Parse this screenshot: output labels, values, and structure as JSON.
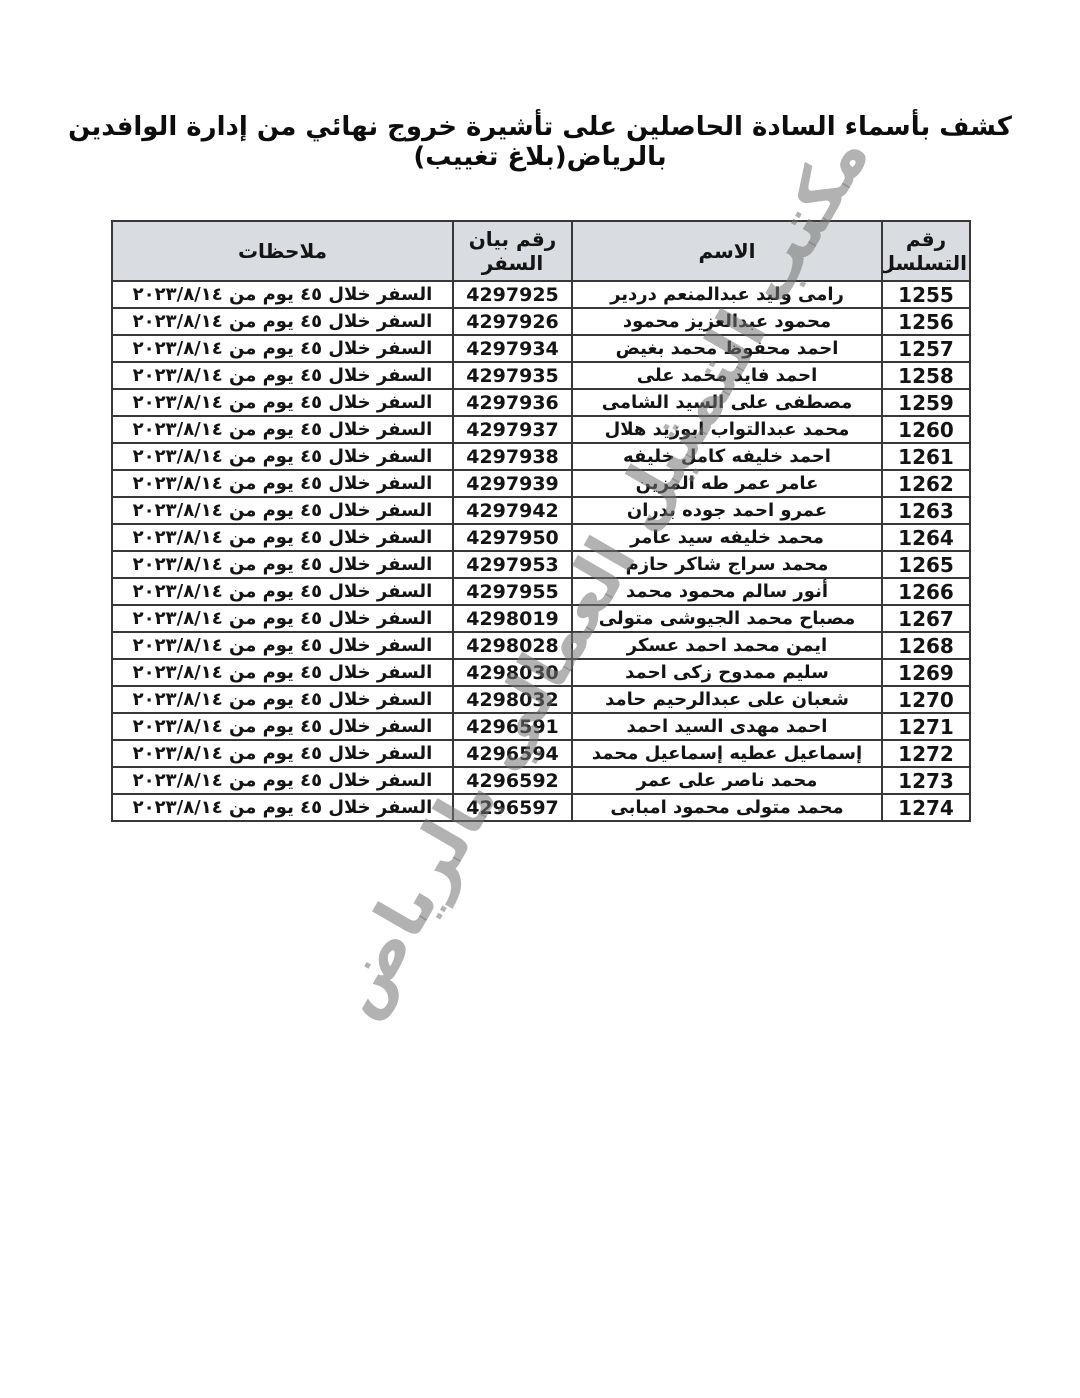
{
  "title": "كشف بأسماء السادة الحاصلين على تأشيرة خروج نهائي من إدارة الوافدين بالرياض(بلاغ تغييب)",
  "watermark_text": "مكتب التمثيل العمالي بالرياض",
  "colors": {
    "header_bg": "#d9dce0",
    "border_color": "#383838",
    "watermark_color": "rgba(115,115,115,0.55)"
  },
  "table": {
    "headers": {
      "serial": "رقم التسلسل",
      "name": "الاسم",
      "travel_doc": "رقم بيان السفر",
      "notes": "ملاحظات"
    },
    "rows": [
      {
        "serial": "1255",
        "name": "رامى وليد عبدالمنعم دردير",
        "travel_doc": "4297925",
        "notes": "السفر خلال ٤٥ يوم من ٢٠٢٣/٨/١٤"
      },
      {
        "serial": "1256",
        "name": "محمود عبدالعزيز محمود",
        "travel_doc": "4297926",
        "notes": "السفر خلال ٤٥ يوم من ٢٠٢٣/٨/١٤"
      },
      {
        "serial": "1257",
        "name": "احمد محفوظ محمد بغيض",
        "travel_doc": "4297934",
        "notes": "السفر خلال ٤٥ يوم من ٢٠٢٣/٨/١٤"
      },
      {
        "serial": "1258",
        "name": "احمد فايد محمد على",
        "travel_doc": "4297935",
        "notes": "السفر خلال ٤٥ يوم من ٢٠٢٣/٨/١٤"
      },
      {
        "serial": "1259",
        "name": "مصطفى على السيد الشامى",
        "travel_doc": "4297936",
        "notes": "السفر خلال ٤٥ يوم من ٢٠٢٣/٨/١٤"
      },
      {
        "serial": "1260",
        "name": "محمد عبدالتواب ابوزيد هلال",
        "travel_doc": "4297937",
        "notes": "السفر خلال ٤٥ يوم من ٢٠٢٣/٨/١٤"
      },
      {
        "serial": "1261",
        "name": "احمد خليفه كامل خليفه",
        "travel_doc": "4297938",
        "notes": "السفر خلال ٤٥ يوم من ٢٠٢٣/٨/١٤"
      },
      {
        "serial": "1262",
        "name": "عامر عمر طه المزين",
        "travel_doc": "4297939",
        "notes": "السفر خلال ٤٥ يوم من ٢٠٢٣/٨/١٤"
      },
      {
        "serial": "1263",
        "name": "عمرو احمد جوده بدران",
        "travel_doc": "4297942",
        "notes": "السفر خلال ٤٥ يوم من ٢٠٢٣/٨/١٤"
      },
      {
        "serial": "1264",
        "name": "محمد خليفه سيد عامر",
        "travel_doc": "4297950",
        "notes": "السفر خلال ٤٥ يوم من ٢٠٢٣/٨/١٤"
      },
      {
        "serial": "1265",
        "name": "محمد سراج شاكر حازم",
        "travel_doc": "4297953",
        "notes": "السفر خلال ٤٥ يوم من ٢٠٢٣/٨/١٤"
      },
      {
        "serial": "1266",
        "name": "أنور سالم محمود محمد",
        "travel_doc": "4297955",
        "notes": "السفر خلال ٤٥ يوم من ٢٠٢٣/٨/١٤"
      },
      {
        "serial": "1267",
        "name": "مصباح محمد الجيوشى متولى",
        "travel_doc": "4298019",
        "notes": "السفر خلال ٤٥ يوم من ٢٠٢٣/٨/١٤"
      },
      {
        "serial": "1268",
        "name": "ايمن محمد احمد عسكر",
        "travel_doc": "4298028",
        "notes": "السفر خلال ٤٥ يوم من ٢٠٢٣/٨/١٤"
      },
      {
        "serial": "1269",
        "name": "سليم ممدوح زكى احمد",
        "travel_doc": "4298030",
        "notes": "السفر خلال ٤٥ يوم من ٢٠٢٣/٨/١٤"
      },
      {
        "serial": "1270",
        "name": "شعبان على عبدالرحيم حامد",
        "travel_doc": "4298032",
        "notes": "السفر خلال ٤٥ يوم من ٢٠٢٣/٨/١٤"
      },
      {
        "serial": "1271",
        "name": "احمد مهدى السيد احمد",
        "travel_doc": "4296591",
        "notes": "السفر خلال ٤٥ يوم من ٢٠٢٣/٨/١٤"
      },
      {
        "serial": "1272",
        "name": "إسماعيل عطيه إسماعيل محمد",
        "travel_doc": "4296594",
        "notes": "السفر خلال ٤٥ يوم من ٢٠٢٣/٨/١٤"
      },
      {
        "serial": "1273",
        "name": "محمد ناصر على عمر",
        "travel_doc": "4296592",
        "notes": "السفر خلال ٤٥ يوم من ٢٠٢٣/٨/١٤"
      },
      {
        "serial": "1274",
        "name": "محمد متولى محمود امبابى",
        "travel_doc": "4296597",
        "notes": "السفر خلال ٤٥ يوم من ٢٠٢٣/٨/١٤"
      }
    ]
  }
}
